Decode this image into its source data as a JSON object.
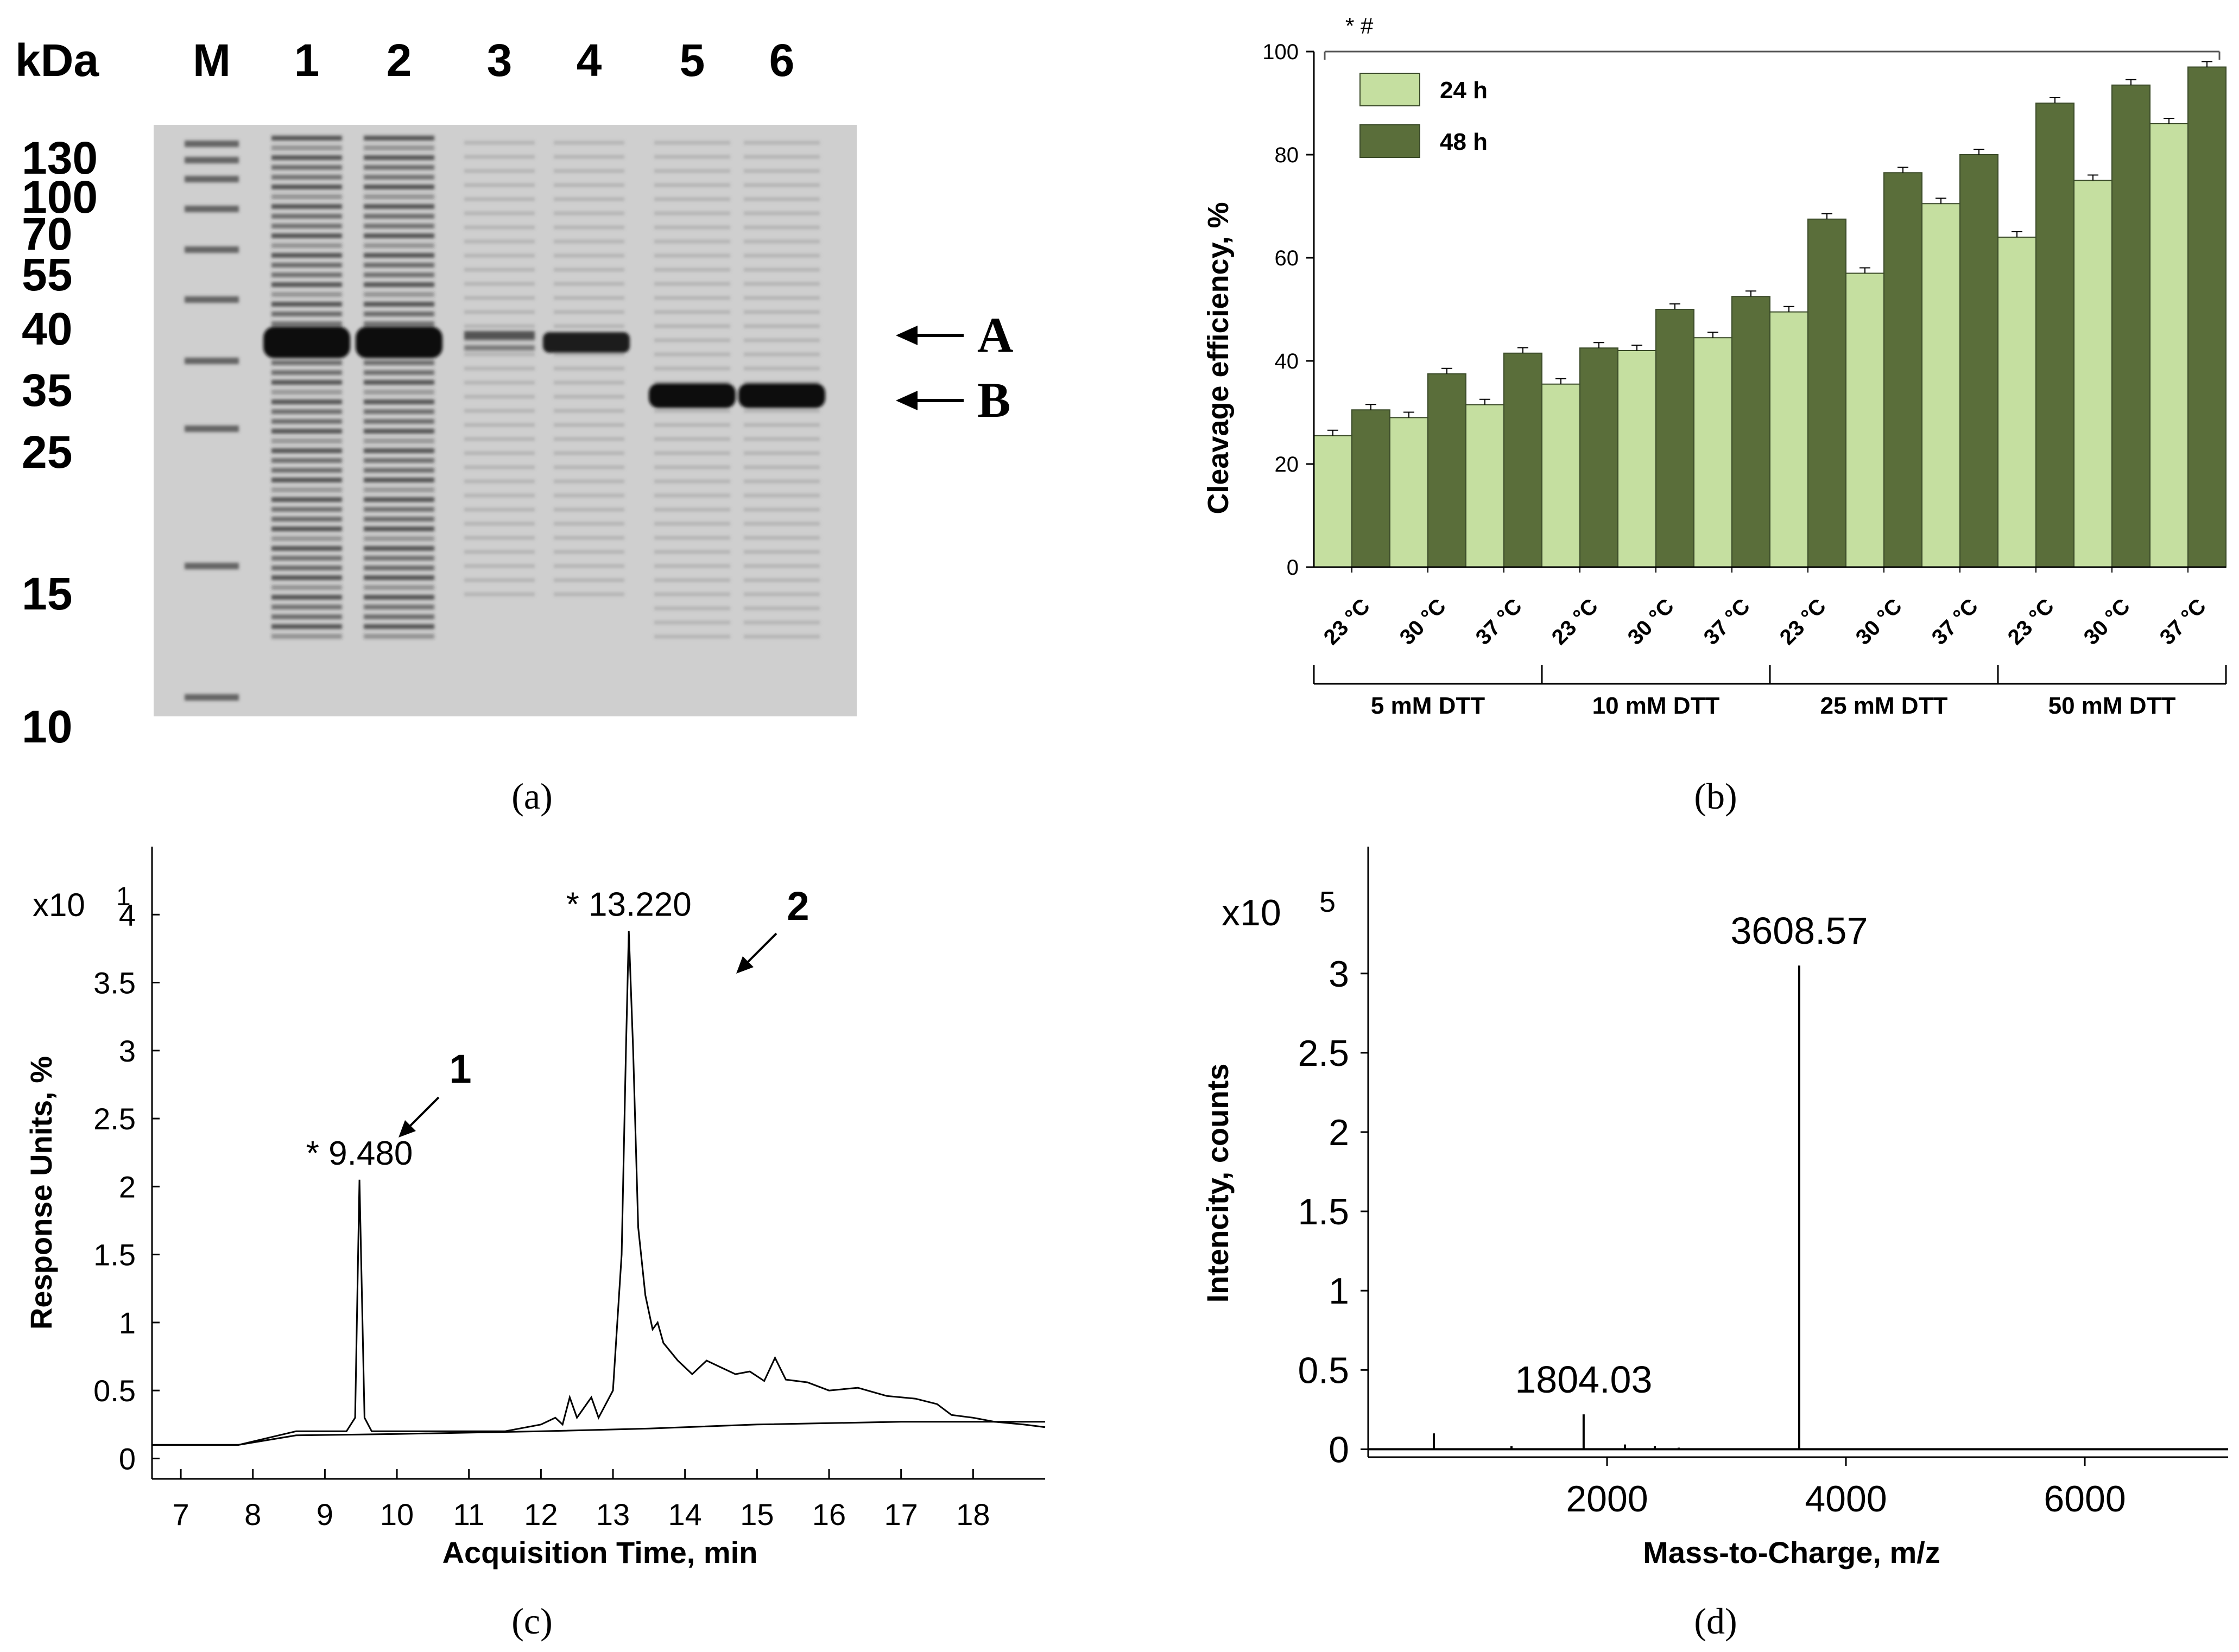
{
  "panels": {
    "a": {
      "caption": "(a)",
      "kda_label": "kDa",
      "lane_labels": [
        "M",
        "1",
        "2",
        "3",
        "4",
        "5",
        "6"
      ],
      "markers": [
        "130",
        "100",
        "70",
        "55",
        "40",
        "35",
        "25",
        "15",
        "10"
      ],
      "arrows": [
        "A",
        "B"
      ]
    },
    "b": {
      "caption": "(b)",
      "significance": "*  #"
    },
    "c": {
      "caption": "(c)",
      "scale": "x10",
      "exponent": "1",
      "label1": "1",
      "label2": "2"
    },
    "d": {
      "caption": "(d)",
      "scale": "x10",
      "exponent": "5"
    }
  },
  "chart_data": [
    {
      "type": "bar",
      "panel": "b",
      "title": "",
      "ylabel": "Cleavage efficiency, %",
      "xlabel": "",
      "ylim": [
        0,
        100
      ],
      "yticks": [
        0,
        20,
        40,
        60,
        80,
        100
      ],
      "legend_position": "top-left",
      "categories": [
        "23 °C",
        "30 °C",
        "37 °C",
        "23 °C",
        "30 °C",
        "37 °C",
        "23 °C",
        "30 °C",
        "37 °C",
        "23 °C",
        "30 °C",
        "37 °C"
      ],
      "groups": [
        "5 mM DTT",
        "10 mM DTT",
        "25 mM DTT",
        "50 mM DTT"
      ],
      "series": [
        {
          "name": "24 h",
          "color": "#c5dfa0",
          "values": [
            25.5,
            29,
            31.5,
            35.5,
            42,
            44.5,
            49.5,
            57,
            70.5,
            64,
            75,
            86
          ]
        },
        {
          "name": "48 h",
          "color": "#5a6e3a",
          "values": [
            30.5,
            37.5,
            41.5,
            42.5,
            50,
            52.5,
            67.5,
            76.5,
            80,
            90,
            93.5,
            97
          ]
        }
      ]
    },
    {
      "type": "line",
      "panel": "c",
      "title": "",
      "xlabel": "Acquisition Time, min",
      "ylabel": "Response Units, %",
      "xlim": [
        6.6,
        19.0
      ],
      "ylim": [
        -0.15,
        4.5
      ],
      "xticks": [
        7,
        8,
        9,
        10,
        11,
        12,
        13,
        14,
        15,
        16,
        17,
        18
      ],
      "yticks": [
        "0",
        "0.5",
        "1",
        "1.5",
        "2",
        "2.5",
        "3",
        "3.5",
        "4"
      ],
      "peaks": [
        {
          "label": "* 9.480",
          "x": 9.48,
          "y": 2.05
        },
        {
          "label": "* 13.220",
          "x": 13.22,
          "y": 3.88
        }
      ],
      "series": [
        {
          "name": "trace",
          "points": [
            [
              6.6,
              0.1
            ],
            [
              7.8,
              0.1
            ],
            [
              8.2,
              0.15
            ],
            [
              8.6,
              0.2
            ],
            [
              9.3,
              0.2
            ],
            [
              9.42,
              0.3
            ],
            [
              9.48,
              2.05
            ],
            [
              9.55,
              0.3
            ],
            [
              9.65,
              0.2
            ],
            [
              10.5,
              0.2
            ],
            [
              11.5,
              0.2
            ],
            [
              12.0,
              0.25
            ],
            [
              12.2,
              0.3
            ],
            [
              12.3,
              0.25
            ],
            [
              12.4,
              0.45
            ],
            [
              12.5,
              0.3
            ],
            [
              12.7,
              0.45
            ],
            [
              12.8,
              0.3
            ],
            [
              13.0,
              0.5
            ],
            [
              13.12,
              1.5
            ],
            [
              13.18,
              3.0
            ],
            [
              13.22,
              3.88
            ],
            [
              13.28,
              3.0
            ],
            [
              13.35,
              1.7
            ],
            [
              13.45,
              1.2
            ],
            [
              13.55,
              0.95
            ],
            [
              13.62,
              1.0
            ],
            [
              13.7,
              0.85
            ],
            [
              13.9,
              0.72
            ],
            [
              14.1,
              0.62
            ],
            [
              14.3,
              0.72
            ],
            [
              14.5,
              0.67
            ],
            [
              14.7,
              0.62
            ],
            [
              14.9,
              0.64
            ],
            [
              15.1,
              0.57
            ],
            [
              15.25,
              0.74
            ],
            [
              15.4,
              0.58
            ],
            [
              15.7,
              0.56
            ],
            [
              16.0,
              0.5
            ],
            [
              16.4,
              0.52
            ],
            [
              16.8,
              0.46
            ],
            [
              17.2,
              0.44
            ],
            [
              17.5,
              0.4
            ],
            [
              17.7,
              0.32
            ],
            [
              18.0,
              0.3
            ],
            [
              18.3,
              0.27
            ],
            [
              18.7,
              0.25
            ],
            [
              19.0,
              0.23
            ]
          ]
        },
        {
          "name": "baseline",
          "points": [
            [
              6.6,
              0.1
            ],
            [
              7.8,
              0.1
            ],
            [
              8.6,
              0.17
            ],
            [
              10.0,
              0.18
            ],
            [
              12.0,
              0.2
            ],
            [
              13.5,
              0.22
            ],
            [
              15.0,
              0.25
            ],
            [
              17.0,
              0.27
            ],
            [
              19.0,
              0.27
            ]
          ]
        }
      ]
    },
    {
      "type": "line",
      "panel": "d",
      "title": "",
      "xlabel": "Mass-to-Charge, m/z",
      "ylabel": "Intencity, counts",
      "xlim": [
        0,
        7200
      ],
      "ylim": [
        -0.05,
        3.8
      ],
      "xticks": [
        2000,
        4000,
        6000
      ],
      "yticks": [
        "0",
        "0.5",
        "1",
        "1.5",
        "2",
        "2.5",
        "3"
      ],
      "peaks": [
        {
          "label": "3608.57",
          "x": 3608.57,
          "y": 3.05
        },
        {
          "label": "1804.03",
          "x": 1804.03,
          "y": 0.22
        }
      ],
      "series": [
        {
          "name": "spectrum",
          "sticks": [
            [
              550,
              0.1
            ],
            [
              1200,
              0.02
            ],
            [
              1804.03,
              0.22
            ],
            [
              2150,
              0.03
            ],
            [
              2400,
              0.02
            ],
            [
              2600,
              0.01
            ],
            [
              3608.57,
              3.05
            ]
          ]
        }
      ]
    }
  ]
}
